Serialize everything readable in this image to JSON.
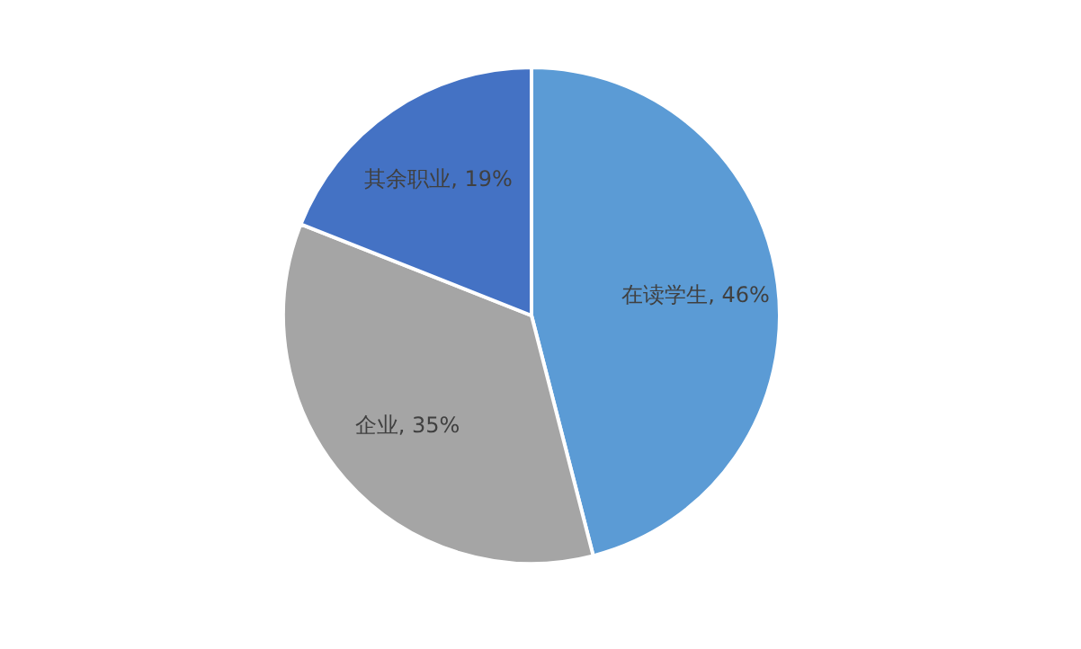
{
  "chart_data": {
    "type": "pie",
    "categories": [
      "在读学生",
      "企业",
      "其余职业"
    ],
    "values": [
      46,
      35,
      19
    ],
    "colors": [
      "#5b9bd5",
      "#a5a5a5",
      "#4472c4"
    ],
    "value_labels": [
      "46%",
      "35%",
      "19%"
    ],
    "legend": false
  }
}
